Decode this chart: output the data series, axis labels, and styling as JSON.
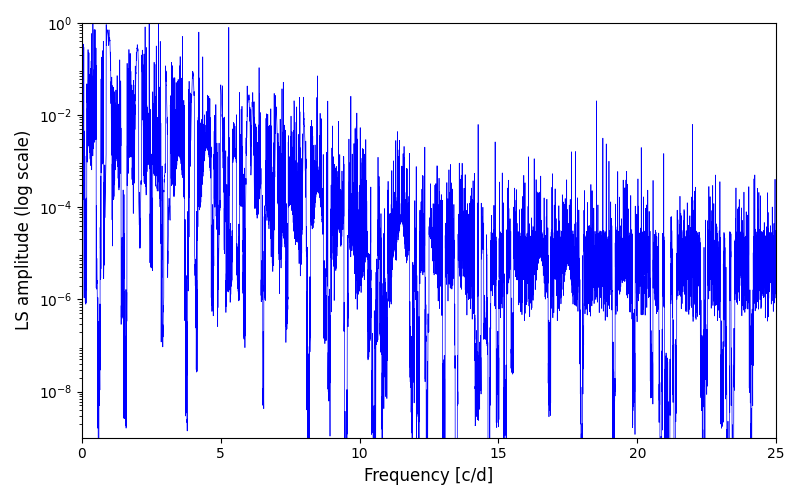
{
  "title": "",
  "xlabel": "Frequency [c/d]",
  "ylabel": "LS amplitude (log scale)",
  "xlim": [
    0,
    25
  ],
  "ylim_log": [
    1e-09,
    1.0
  ],
  "yticks": [
    1e-08,
    1e-06,
    0.0001,
    0.01,
    1.0
  ],
  "xticks": [
    0,
    5,
    10,
    15,
    20,
    25
  ],
  "line_color": "#0000ff",
  "line_width": 0.5,
  "figsize": [
    8.0,
    5.0
  ],
  "dpi": 100,
  "seed": 12345,
  "n_points": 8000,
  "freq_max": 25.0,
  "background_color": "#ffffff"
}
